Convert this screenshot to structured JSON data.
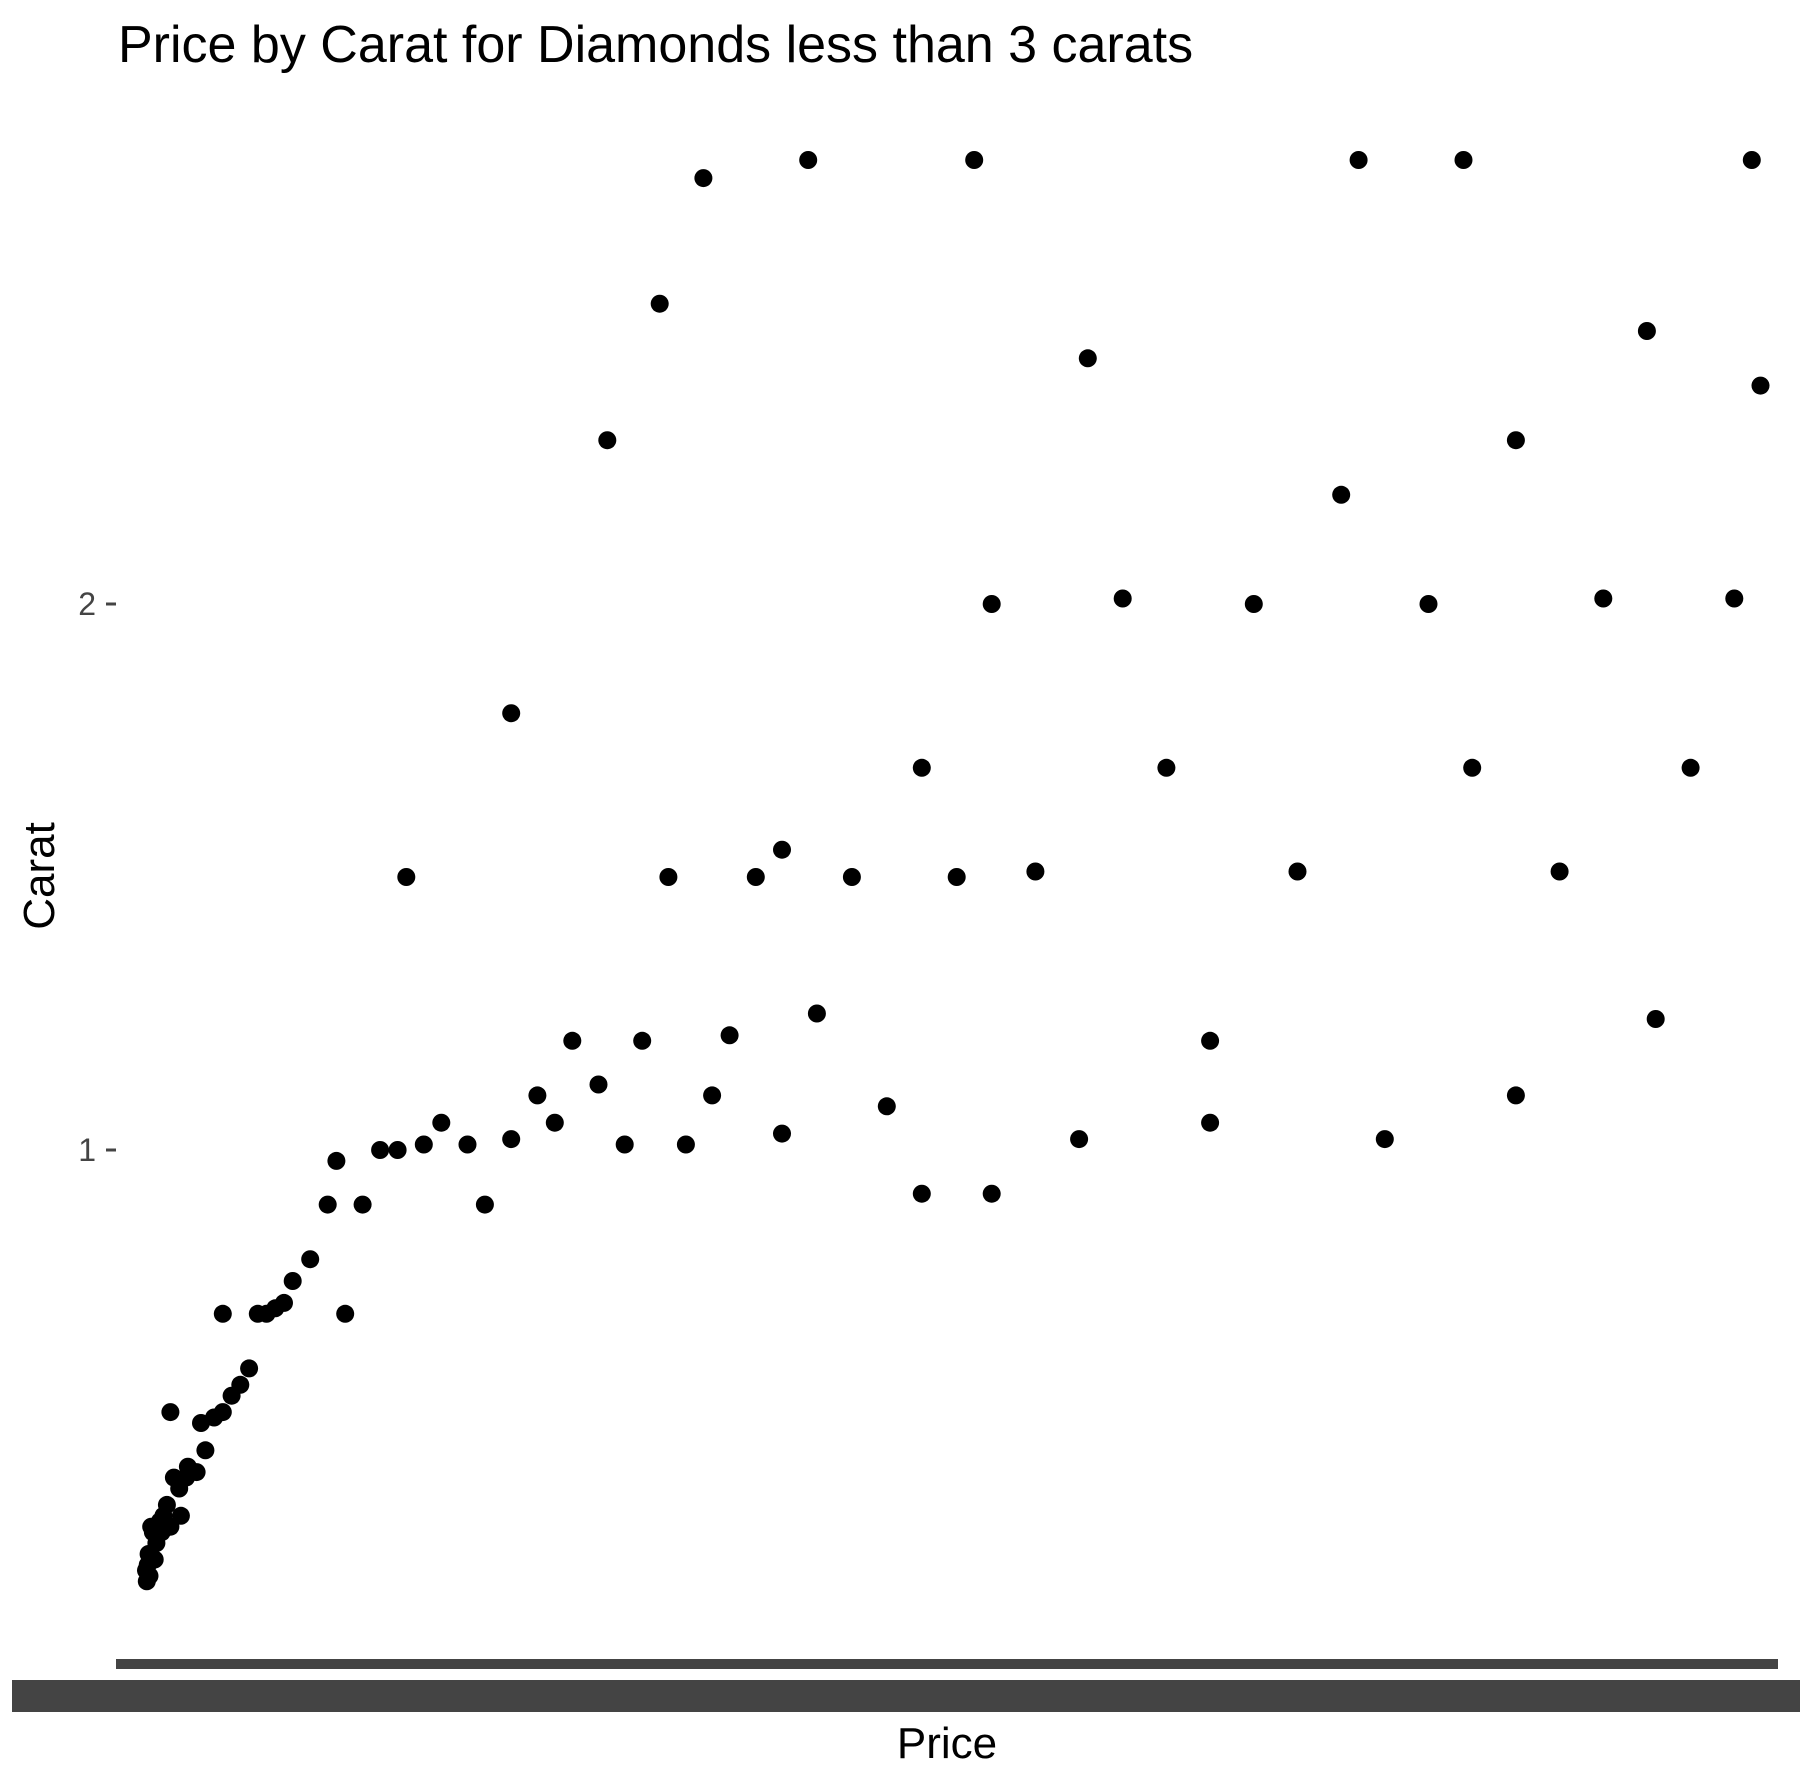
{
  "chart_data": {
    "type": "scatter",
    "title": "Price by Carat for Diamonds less than 3 carats",
    "xlabel": "Price",
    "ylabel": "Carat",
    "y_ticks": [
      {
        "value": 1,
        "label": "1"
      },
      {
        "value": 2,
        "label": "2"
      }
    ],
    "x_ticks": [],
    "ylim": [
      0.2,
      2.98
    ],
    "xlim": [
      0,
      19000
    ],
    "grid": false,
    "point_color": "#000000",
    "axis_bar_color": "#444444",
    "series": [
      {
        "points": [
          [
            320,
            0.23
          ],
          [
            330,
            0.21
          ],
          [
            340,
            0.24
          ],
          [
            350,
            0.26
          ],
          [
            360,
            0.22
          ],
          [
            380,
            0.31
          ],
          [
            400,
            0.3
          ],
          [
            420,
            0.25
          ],
          [
            440,
            0.28
          ],
          [
            460,
            0.31
          ],
          [
            480,
            0.32
          ],
          [
            500,
            0.3
          ],
          [
            520,
            0.33
          ],
          [
            560,
            0.35
          ],
          [
            600,
            0.31
          ],
          [
            640,
            0.4
          ],
          [
            700,
            0.38
          ],
          [
            720,
            0.33
          ],
          [
            780,
            0.4
          ],
          [
            800,
            0.42
          ],
          [
            900,
            0.41
          ],
          [
            950,
            0.5
          ],
          [
            1000,
            0.45
          ],
          [
            1100,
            0.51
          ],
          [
            1200,
            0.52
          ],
          [
            1300,
            0.55
          ],
          [
            1400,
            0.57
          ],
          [
            1500,
            0.6
          ],
          [
            1600,
            0.7
          ],
          [
            1700,
            0.7
          ],
          [
            1800,
            0.71
          ],
          [
            1900,
            0.72
          ],
          [
            2000,
            0.76
          ],
          [
            2200,
            0.8
          ],
          [
            2400,
            0.9
          ],
          [
            2600,
            0.7
          ],
          [
            2800,
            0.9
          ],
          [
            3000,
            1.0
          ],
          [
            3200,
            1.0
          ],
          [
            3500,
            1.01
          ],
          [
            3700,
            1.05
          ],
          [
            4000,
            1.01
          ],
          [
            4200,
            0.9
          ],
          [
            4500,
            1.02
          ],
          [
            4800,
            1.1
          ],
          [
            5000,
            1.05
          ],
          [
            5200,
            1.2
          ],
          [
            5500,
            1.12
          ],
          [
            5800,
            1.01
          ],
          [
            6000,
            1.2
          ],
          [
            6300,
            1.5
          ],
          [
            6500,
            1.01
          ],
          [
            6800,
            1.1
          ],
          [
            7000,
            1.21
          ],
          [
            7300,
            1.5
          ],
          [
            7600,
            1.03
          ],
          [
            8000,
            1.25
          ],
          [
            8400,
            1.5
          ],
          [
            8800,
            1.08
          ],
          [
            9200,
            1.7
          ],
          [
            9600,
            1.5
          ],
          [
            10000,
            2.0
          ],
          [
            10500,
            1.51
          ],
          [
            11000,
            1.02
          ],
          [
            11500,
            2.01
          ],
          [
            12000,
            1.7
          ],
          [
            12500,
            1.2
          ],
          [
            13000,
            2.0
          ],
          [
            13500,
            1.51
          ],
          [
            14000,
            2.2
          ],
          [
            14500,
            1.02
          ],
          [
            15000,
            2.0
          ],
          [
            15500,
            1.7
          ],
          [
            16000,
            2.3
          ],
          [
            16500,
            1.51
          ],
          [
            17000,
            2.01
          ],
          [
            17500,
            2.5
          ],
          [
            18000,
            1.7
          ],
          [
            18500,
            2.01
          ],
          [
            18800,
            2.4
          ],
          [
            7900,
            2.86
          ],
          [
            9800,
            2.9
          ],
          [
            14200,
            2.95
          ],
          [
            15400,
            2.84
          ],
          [
            18700,
            2.94
          ],
          [
            6700,
            2.78
          ],
          [
            6200,
            2.55
          ],
          [
            5600,
            2.3
          ],
          [
            4500,
            1.8
          ],
          [
            3300,
            1.5
          ],
          [
            12500,
            1.05
          ],
          [
            10000,
            0.92
          ],
          [
            7600,
            1.55
          ],
          [
            2500,
            0.98
          ],
          [
            1200,
            0.7
          ],
          [
            600,
            0.52
          ],
          [
            9200,
            0.92
          ],
          [
            16000,
            1.1
          ],
          [
            17600,
            1.24
          ],
          [
            11100,
            2.45
          ]
        ]
      }
    ]
  }
}
